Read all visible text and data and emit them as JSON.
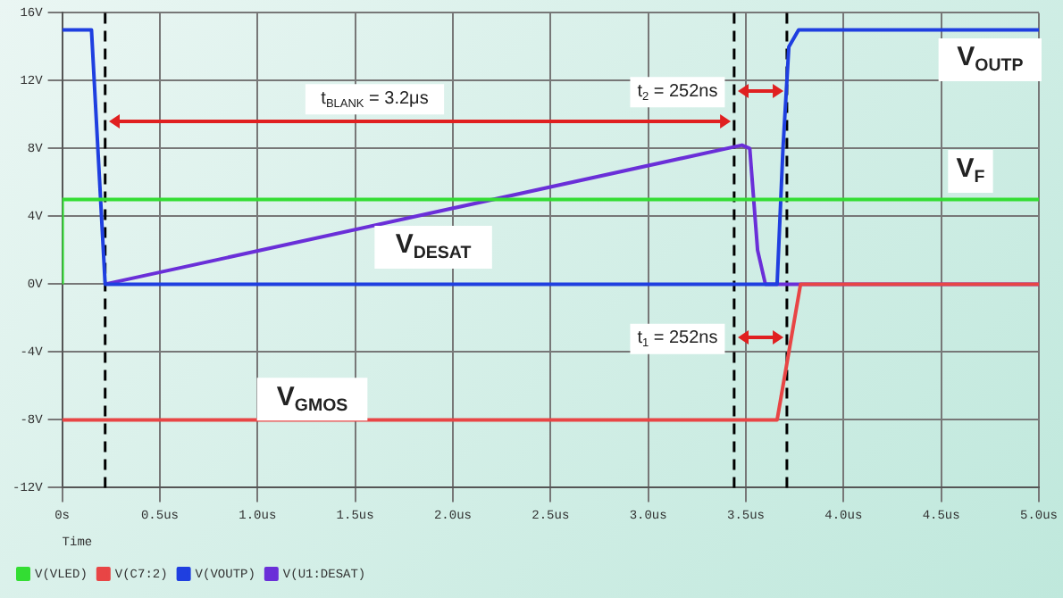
{
  "chart_data": {
    "type": "line",
    "xlabel": "Time",
    "xlim": [
      0,
      5
    ],
    "xticks": [
      {
        "value": 0,
        "label": "0s"
      },
      {
        "value": 0.5,
        "label": "0.5us"
      },
      {
        "value": 1,
        "label": "1.0us"
      },
      {
        "value": 1.5,
        "label": "1.5us"
      },
      {
        "value": 2,
        "label": "2.0us"
      },
      {
        "value": 2.5,
        "label": "2.5us"
      },
      {
        "value": 3,
        "label": "3.0us"
      },
      {
        "value": 3.5,
        "label": "3.5us"
      },
      {
        "value": 4,
        "label": "4.0us"
      },
      {
        "value": 4.5,
        "label": "4.5us"
      },
      {
        "value": 5,
        "label": "5.0us"
      }
    ],
    "ylim": [
      -12,
      16
    ],
    "yticks": [
      {
        "value": -12,
        "label": "-12V"
      },
      {
        "value": -8,
        "label": "-8V"
      },
      {
        "value": -4,
        "label": "-4V"
      },
      {
        "value": 0,
        "label": "0V"
      },
      {
        "value": 4,
        "label": "4V"
      },
      {
        "value": 8,
        "label": "8V"
      },
      {
        "value": 12,
        "label": "12V"
      },
      {
        "value": 16,
        "label": "16V"
      }
    ],
    "series": [
      {
        "name": "V(VLED)",
        "color": "#33dd33",
        "x": [
          0,
          0,
          5
        ],
        "values": [
          0,
          5,
          5
        ]
      },
      {
        "name": "V(C7:2)",
        "color": "#e84545",
        "x": [
          0,
          3.66,
          3.72,
          3.78,
          5
        ],
        "values": [
          -8,
          -8,
          -4,
          0,
          0
        ]
      },
      {
        "name": "V(VOUTP)",
        "color": "#1f3fe0",
        "x": [
          0,
          0.15,
          0.22,
          3.66,
          3.69,
          3.72,
          3.77,
          5
        ],
        "values": [
          15,
          15,
          0,
          0,
          8,
          14,
          15,
          15
        ]
      },
      {
        "name": "V(U1:DESAT)",
        "color": "#6a2fd8",
        "x": [
          0.22,
          3.48,
          3.52,
          3.56,
          3.6,
          5
        ],
        "values": [
          0,
          8.2,
          8,
          2,
          0,
          0
        ]
      }
    ],
    "ref_lines": [
      {
        "axis": "x",
        "value": 0.22,
        "color": "#000000",
        "line_style": "dashed"
      },
      {
        "axis": "x",
        "value": 3.44,
        "color": "#000000",
        "line_style": "dashed"
      },
      {
        "axis": "x",
        "value": 3.71,
        "color": "#000000",
        "line_style": "dashed"
      }
    ],
    "annotations": [
      "t$_{BLANK}$ = 3.2μs",
      "t$_{2}$ = 252ns",
      "t$_{1}$ = 252ns",
      "V$_{OUTP}$",
      "V$_{F}$",
      "V$_{DESAT}$",
      "V$_{GMOS}$"
    ],
    "grid": true,
    "legend": "bottom left",
    "line_style": "solid"
  }
}
